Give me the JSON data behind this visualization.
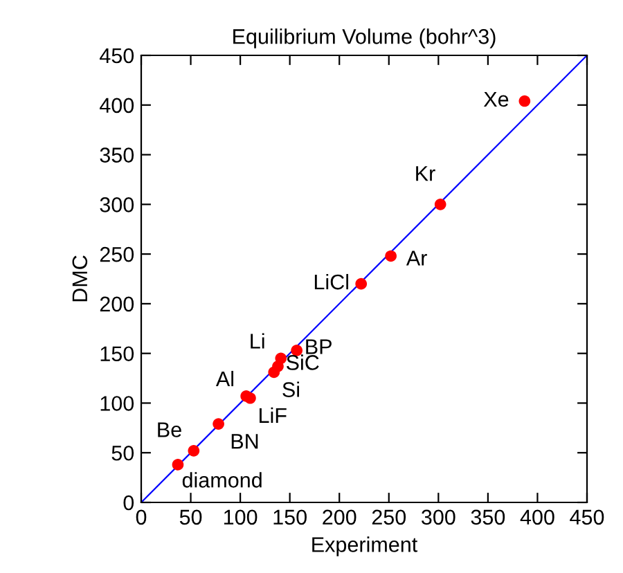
{
  "chart_data": {
    "type": "scatter",
    "title": "Equilibrium Volume (bohr^3)",
    "xlabel": "Experiment",
    "ylabel": "DMC",
    "xlim": [
      0,
      450
    ],
    "ylim": [
      0,
      450
    ],
    "xticks": [
      0,
      50,
      100,
      150,
      200,
      250,
      300,
      350,
      400,
      450
    ],
    "yticks": [
      0,
      50,
      100,
      150,
      200,
      250,
      300,
      350,
      400,
      450
    ],
    "grid": false,
    "legend": false,
    "marker": "circle",
    "series": [
      {
        "type": "line",
        "color": "#0000ff",
        "x": [
          0,
          450
        ],
        "values": [
          0,
          450
        ],
        "line_style": "solid",
        "marker": "none"
      },
      {
        "color": "#ff0000",
        "x": [
          387,
          302,
          252,
          222,
          157,
          141,
          138,
          134,
          106,
          110,
          78,
          53,
          37
        ],
        "values": [
          404,
          300,
          248,
          220,
          153,
          145,
          137,
          131,
          107,
          105,
          79,
          52,
          38
        ]
      }
    ],
    "annotations": [
      {
        "text": "Xe",
        "x": 387,
        "y": 404
      },
      {
        "text": "Kr",
        "x": 302,
        "y": 300
      },
      {
        "text": "Ar",
        "x": 252,
        "y": 248
      },
      {
        "text": "LiCl",
        "x": 222,
        "y": 220
      },
      {
        "text": "BP",
        "x": 157,
        "y": 153
      },
      {
        "text": "Li",
        "x": 141,
        "y": 145
      },
      {
        "text": "SiC",
        "x": 138,
        "y": 137
      },
      {
        "text": "Si",
        "x": 134,
        "y": 131
      },
      {
        "text": "Al",
        "x": 106,
        "y": 107
      },
      {
        "text": "LiF",
        "x": 110,
        "y": 105
      },
      {
        "text": "BN",
        "x": 78,
        "y": 79
      },
      {
        "text": "Be",
        "x": 53,
        "y": 52
      },
      {
        "text": "diamond",
        "x": 37,
        "y": 38
      }
    ]
  }
}
